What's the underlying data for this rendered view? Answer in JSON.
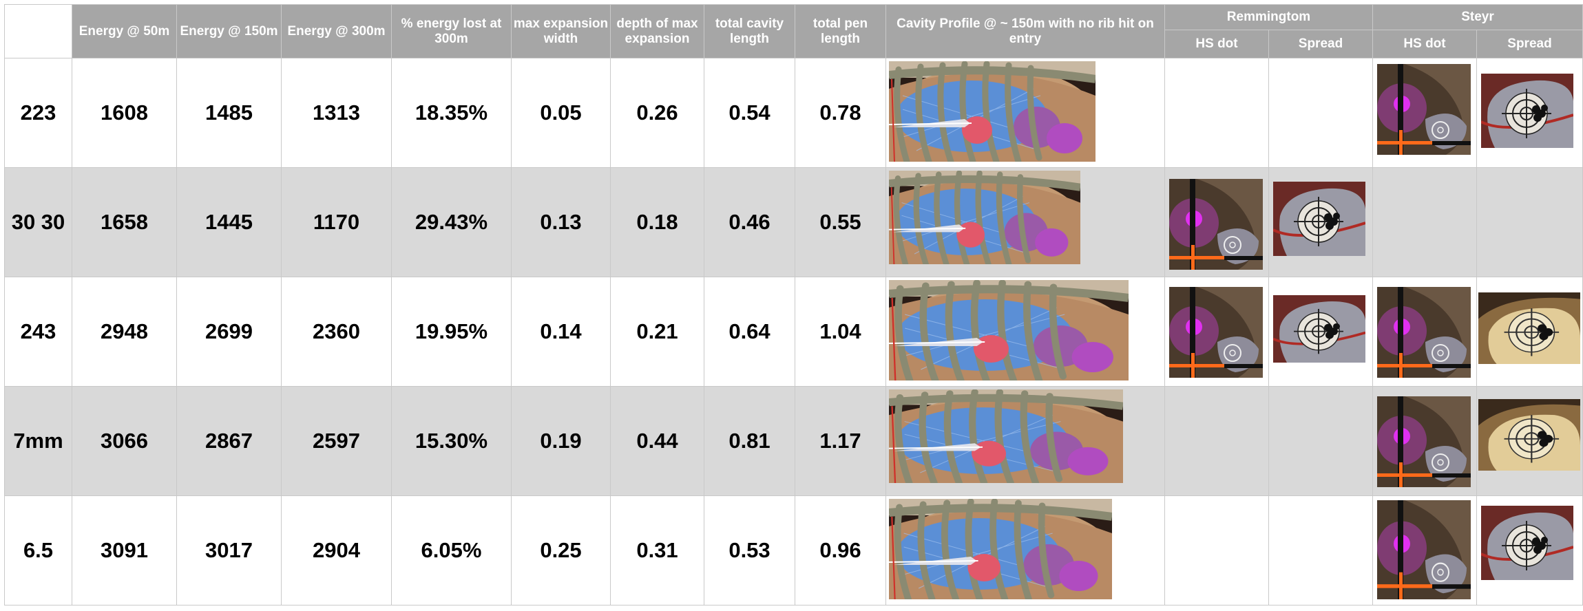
{
  "header": {
    "col_energy50": "Energy @ 50m",
    "col_energy150": "Energy @ 150m",
    "col_energy300": "Energy @ 300m",
    "col_pct_lost": "% energy lost at 300m",
    "col_max_exp_width": "max expansion width",
    "col_depth_max_exp": "depth of max expansion",
    "col_cavity_length": "total cavity length",
    "col_pen_length": "total pen length",
    "col_cavity_profile": "Cavity Profile @ ~ 150m with no rib hit on entry",
    "group_remington": "Remmingtom",
    "group_steyr": "Steyr",
    "sub_hs_dot": "HS dot",
    "sub_spread": "Spread"
  },
  "rows": [
    {
      "caliber": "223",
      "e50": "1608",
      "e150": "1485",
      "e300": "1313",
      "pct": "18.35%",
      "width": "0.05",
      "depth": "0.26",
      "cavity": "0.54",
      "pen": "0.78"
    },
    {
      "caliber": "30 30",
      "e50": "1658",
      "e150": "1445",
      "e300": "1170",
      "pct": "29.43%",
      "width": "0.13",
      "depth": "0.18",
      "cavity": "0.46",
      "pen": "0.55"
    },
    {
      "caliber": "243",
      "e50": "2948",
      "e150": "2699",
      "e300": "2360",
      "pct": "19.95%",
      "width": "0.14",
      "depth": "0.21",
      "cavity": "0.64",
      "pen": "1.04"
    },
    {
      "caliber": "7mm",
      "e50": "3066",
      "e150": "2867",
      "e300": "2597",
      "pct": "15.30%",
      "width": "0.19",
      "depth": "0.44",
      "cavity": "0.81",
      "pen": "1.17"
    },
    {
      "caliber": "6.5",
      "e50": "3091",
      "e150": "3017",
      "e300": "2904",
      "pct": "6.05%",
      "width": "0.25",
      "depth": "0.31",
      "cavity": "0.53",
      "pen": "0.96"
    }
  ],
  "colors": {
    "header_bg": "#a6a6a6",
    "shade_row": "#d9d9d9",
    "grid_line": "#c9c9c9",
    "bone": "#8a8a72",
    "lung": "#5b8fd6",
    "heart": "#e2586a",
    "magenta_dot": "#d020d8",
    "crosshair_orange": "#ff6a1a"
  }
}
